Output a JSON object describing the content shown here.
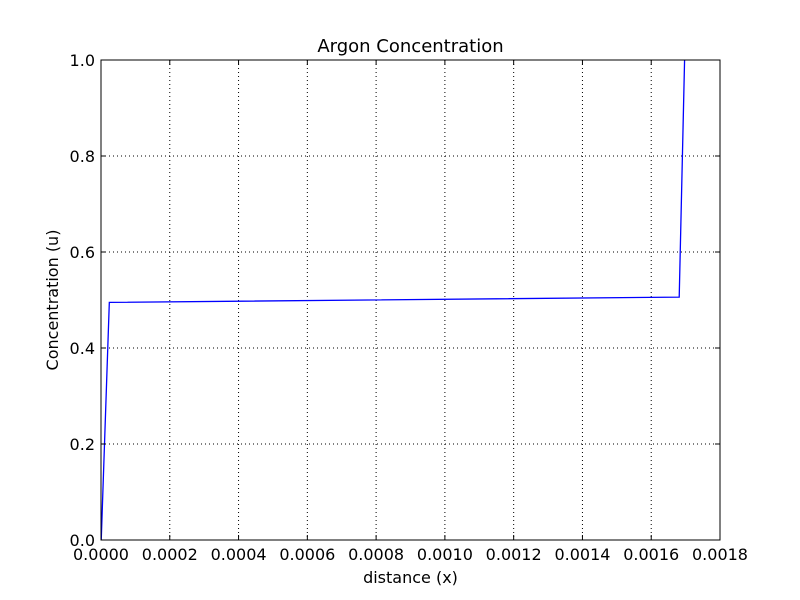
{
  "chart_data": {
    "type": "line",
    "title": "Argon Concentration",
    "xlabel": "distance (x)",
    "ylabel": "Concentration (u)",
    "xlim": [
      0.0,
      0.0018
    ],
    "ylim": [
      0.0,
      1.0
    ],
    "grid": true,
    "xticks": [
      "0.0000",
      "0.0002",
      "0.0004",
      "0.0006",
      "0.0008",
      "0.0010",
      "0.0012",
      "0.0014",
      "0.0016",
      "0.0018"
    ],
    "yticks": [
      "0.0",
      "0.2",
      "0.4",
      "0.6",
      "0.8",
      "1.0"
    ],
    "series": [
      {
        "color": "#0000ff",
        "x": [
          7e-07,
          2.42e-05,
          0.0016814,
          0.001697
        ],
        "y": [
          0.0,
          0.495,
          0.506,
          1.0
        ]
      }
    ]
  }
}
